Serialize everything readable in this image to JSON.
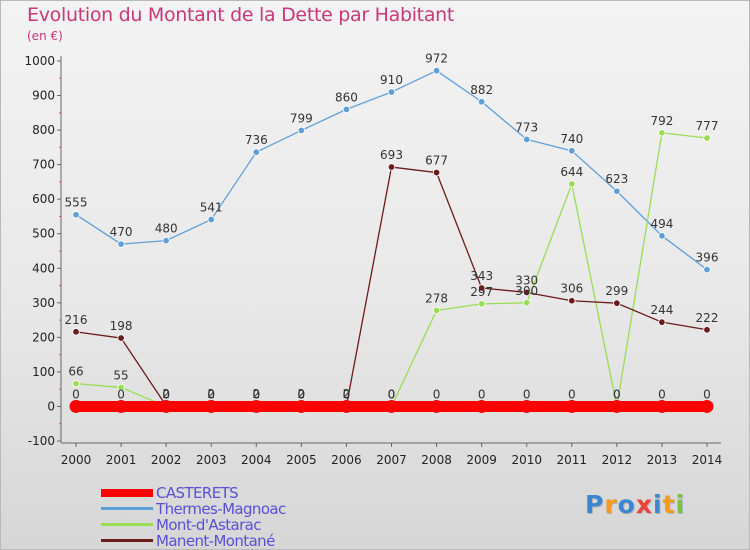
{
  "title": "Evolution du Montant de la Dette par Habitant",
  "subtitle": "(en €)",
  "brand": {
    "text": "Proxiti",
    "colors": [
      "#3b86cf",
      "#f39a21",
      "#3b86cf",
      "#e9433b",
      "#3b86cf",
      "#f39a21",
      "#7cc242"
    ]
  },
  "chart_data": {
    "type": "line",
    "x": [
      2000,
      2001,
      2002,
      2003,
      2004,
      2005,
      2006,
      2007,
      2008,
      2009,
      2010,
      2011,
      2012,
      2013,
      2014
    ],
    "ylim": [
      -100,
      1000
    ],
    "yticks": [
      -100,
      0,
      100,
      200,
      300,
      400,
      500,
      600,
      700,
      800,
      900,
      1000
    ],
    "xlabel": "",
    "ylabel": "",
    "grid": false,
    "legend": "bottom-left",
    "series": [
      {
        "name": "CASTERETS",
        "color": "#ff0000",
        "values": [
          0,
          0,
          0,
          0,
          0,
          0,
          0,
          0,
          0,
          0,
          0,
          0,
          0,
          0,
          0
        ]
      },
      {
        "name": "Thermes-Magnoac",
        "color": "#5f9fd8",
        "values": [
          555,
          470,
          480,
          541,
          736,
          799,
          860,
          910,
          972,
          882,
          773,
          740,
          623,
          494,
          396
        ]
      },
      {
        "name": "Mont-d'Astarac",
        "color": "#99dd55",
        "values": [
          66,
          55,
          0,
          0,
          0,
          0,
          0,
          0,
          278,
          297,
          300,
          644,
          0,
          792,
          777
        ]
      },
      {
        "name": "Manent-Montané",
        "color": "#6b1b1b",
        "values": [
          216,
          198,
          2,
          2,
          2,
          2,
          2,
          693,
          677,
          343,
          330,
          306,
          299,
          244,
          222
        ]
      }
    ]
  }
}
